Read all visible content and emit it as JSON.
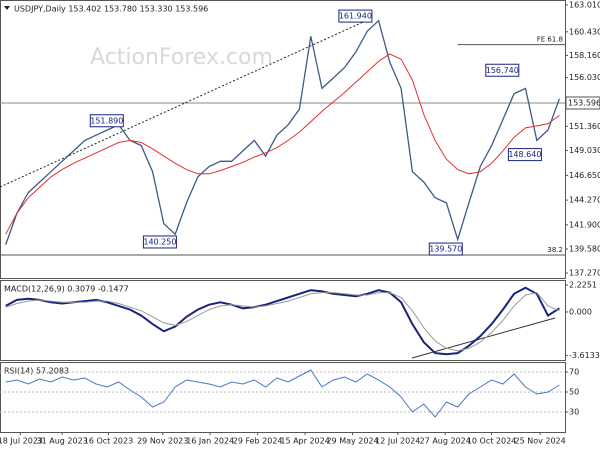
{
  "chart_data": [
    {
      "type": "line",
      "title": "USDJPY,Daily 153.402 153.780 153.330 153.596",
      "watermark": "ActionForex.com",
      "xlim": [
        -0.5,
        49.5
      ],
      "ylim": [
        136.79,
        163.39
      ],
      "yticks": [
        {
          "value": 163.01,
          "label": "163.010"
        },
        {
          "value": 160.43,
          "label": "160.430"
        },
        {
          "value": 158.16,
          "label": "158.160"
        },
        {
          "value": 156.03,
          "label": "156.030"
        },
        {
          "value": 151.36,
          "label": "151.360"
        },
        {
          "value": 149.03,
          "label": "149.030"
        },
        {
          "value": 146.65,
          "label": "146.650"
        },
        {
          "value": 144.27,
          "label": "144.270"
        },
        {
          "value": 141.9,
          "label": "141.900"
        },
        {
          "value": 139.58,
          "label": "139.580"
        },
        {
          "value": 137.27,
          "label": "137.270"
        }
      ],
      "last": {
        "value": 153.596,
        "label": "153.596"
      },
      "series": [
        {
          "name": "Close",
          "color": "#3d5a86",
          "width": 1.3,
          "values": [
            140,
            143,
            145,
            146,
            147,
            148,
            149,
            150,
            150.5,
            151,
            151.5,
            150,
            149.5,
            147,
            142,
            141,
            144,
            146.5,
            147.5,
            148,
            148,
            149,
            150,
            148.5,
            150.5,
            151.5,
            153,
            160,
            155,
            156,
            157,
            158.5,
            160.5,
            161.5,
            157.5,
            155,
            147,
            146,
            144.5,
            144,
            140.5,
            144,
            147.5,
            149.5,
            152,
            154.5,
            155,
            150,
            151,
            154
          ]
        },
        {
          "name": "MA",
          "color": "#e03030",
          "width": 1,
          "values": [
            141,
            143,
            144.5,
            145.5,
            146.5,
            147.2,
            147.8,
            148.3,
            148.8,
            149.3,
            149.8,
            150,
            149.8,
            149.2,
            148.5,
            147.8,
            147.2,
            146.8,
            146.8,
            147.1,
            147.5,
            147.9,
            148.4,
            148.8,
            149.3,
            150,
            150.8,
            151.8,
            152.8,
            153.7,
            154.6,
            155.6,
            156.6,
            157.6,
            158.3,
            157.8,
            155.8,
            152.5,
            150,
            148.2,
            147.2,
            146.8,
            147,
            147.8,
            149,
            150.3,
            151.2,
            151.4,
            151.6,
            152.4
          ]
        }
      ],
      "annotations": [
        {
          "label": "161.940",
          "value": 161.94,
          "x": 32.5
        },
        {
          "label": "151.890",
          "value": 151.89,
          "x": 10.5
        },
        {
          "label": "140.250",
          "value": 140.25,
          "x": 15.2
        },
        {
          "label": "156.740",
          "value": 156.74,
          "x": 45.5
        },
        {
          "label": "148.640",
          "value": 148.64,
          "x": 47.5
        },
        {
          "label": "139.570",
          "value": 139.57,
          "x": 40.5
        }
      ],
      "levels": [
        {
          "name": "FE 61.8",
          "price": 159.2,
          "from": 40
        },
        {
          "name": "38.2",
          "price": 139.0,
          "from": -0.5
        }
      ]
    },
    {
      "type": "line",
      "title": "MACD(12,26,9) 0.3079 -0.1477",
      "xlim": [
        -0.5,
        49.5
      ],
      "ylim": [
        -3.97,
        2.56
      ],
      "yticks": [
        2.2251,
        {
          "value": 0,
          "label": "0.000"
        },
        -3.6133
      ],
      "series": [
        {
          "name": "MACD",
          "color": "#1a237e",
          "width": 2,
          "values": [
            0.5,
            1.0,
            1.1,
            1.0,
            0.8,
            0.7,
            0.8,
            0.9,
            1.0,
            0.8,
            0.5,
            0.2,
            -0.3,
            -1.0,
            -1.6,
            -1.2,
            -0.4,
            0.2,
            0.6,
            0.8,
            0.6,
            0.3,
            0.4,
            0.6,
            0.9,
            1.2,
            1.5,
            1.8,
            1.7,
            1.5,
            1.4,
            1.3,
            1.5,
            1.8,
            1.6,
            0.8,
            -1.0,
            -2.5,
            -3.4,
            -3.5,
            -3.4,
            -2.8,
            -2.0,
            -1.0,
            0.2,
            1.5,
            2.0,
            1.5,
            -0.3,
            0.3
          ]
        },
        {
          "name": "Signal",
          "color": "#9a9a9a",
          "width": 1,
          "values": [
            0.4,
            0.7,
            0.9,
            1.0,
            0.9,
            0.8,
            0.8,
            0.8,
            0.9,
            0.9,
            0.7,
            0.4,
            0.1,
            -0.4,
            -0.9,
            -1.1,
            -0.8,
            -0.3,
            0.2,
            0.5,
            0.6,
            0.5,
            0.4,
            0.5,
            0.7,
            0.9,
            1.2,
            1.5,
            1.6,
            1.6,
            1.5,
            1.4,
            1.4,
            1.6,
            1.6,
            1.2,
            0.1,
            -1.3,
            -2.4,
            -3.0,
            -3.2,
            -3.0,
            -2.5,
            -1.7,
            -0.7,
            0.5,
            1.4,
            1.6,
            0.5,
            0.1
          ]
        }
      ]
    },
    {
      "type": "line",
      "title": "RSI(14) 57.2083",
      "xlim": [
        -0.5,
        49.5
      ],
      "ylim": [
        10,
        79
      ],
      "yticks": [
        70,
        50,
        30
      ],
      "xticks": [
        {
          "value": 1.3,
          "label": "18 Jul 2023"
        },
        {
          "value": 5,
          "label": "31 Aug 2023"
        },
        {
          "value": 9.1,
          "label": "16 Oct 2023"
        },
        {
          "value": 13.9,
          "label": "29 Nov 2023"
        },
        {
          "value": 18.1,
          "label": "16 Jan 2024"
        },
        {
          "value": 22.3,
          "label": "29 Feb 2024"
        },
        {
          "value": 26.5,
          "label": "15 Apr 2024"
        },
        {
          "value": 30.7,
          "label": "29 May 2024"
        },
        {
          "value": 34.7,
          "label": "12 Jul 2024"
        },
        {
          "value": 38.9,
          "label": "27 Aug 2024"
        },
        {
          "value": 43,
          "label": "10 Oct 2024"
        },
        {
          "value": 47.3,
          "label": "25 Nov 2024"
        }
      ],
      "series": [
        {
          "name": "RSI",
          "color": "#4a78c0",
          "width": 1,
          "values": [
            60,
            62,
            58,
            63,
            60,
            65,
            62,
            64,
            58,
            55,
            60,
            52,
            45,
            35,
            40,
            55,
            62,
            60,
            58,
            55,
            60,
            58,
            62,
            55,
            64,
            60,
            66,
            72,
            55,
            62,
            65,
            60,
            68,
            62,
            55,
            45,
            30,
            38,
            25,
            40,
            35,
            48,
            55,
            62,
            58,
            68,
            55,
            48,
            50,
            57
          ]
        }
      ]
    }
  ]
}
